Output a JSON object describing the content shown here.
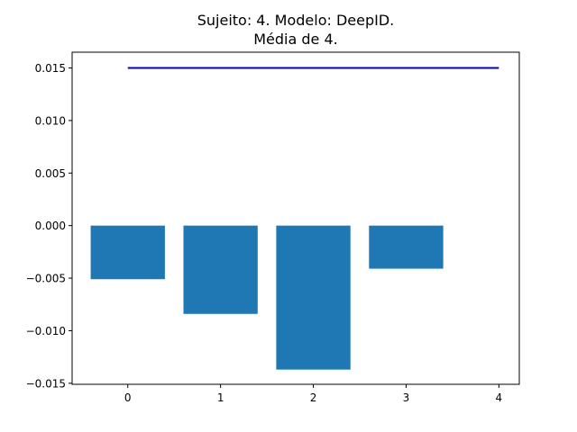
{
  "chart_data": {
    "type": "bar",
    "title_lines": [
      "Sujeito: 4. Modelo: DeepID.",
      "Média de 4."
    ],
    "xlabel": "",
    "ylabel": "",
    "categories": [
      0,
      1,
      2,
      3
    ],
    "values": [
      -0.0051,
      -0.0084,
      -0.0137,
      -0.0041
    ],
    "bar_color": "#1f77b4",
    "reference_line": {
      "x": [
        0,
        4
      ],
      "y": [
        0.015,
        0.015
      ],
      "color": "#0000cd"
    },
    "xlim": [
      -0.6,
      4.22
    ],
    "ylim": [
      -0.0151,
      0.0165
    ],
    "x_ticks": [
      0,
      1,
      2,
      3,
      4
    ],
    "x_tick_labels": [
      "0",
      "1",
      "2",
      "3",
      "4"
    ],
    "y_ticks": [
      -0.015,
      -0.01,
      -0.005,
      0.0,
      0.005,
      0.01,
      0.015
    ],
    "y_tick_labels": [
      "−0.015",
      "−0.010",
      "−0.005",
      "0.000",
      "0.005",
      "0.010",
      "0.015"
    ],
    "grid": false,
    "legend": "none"
  }
}
